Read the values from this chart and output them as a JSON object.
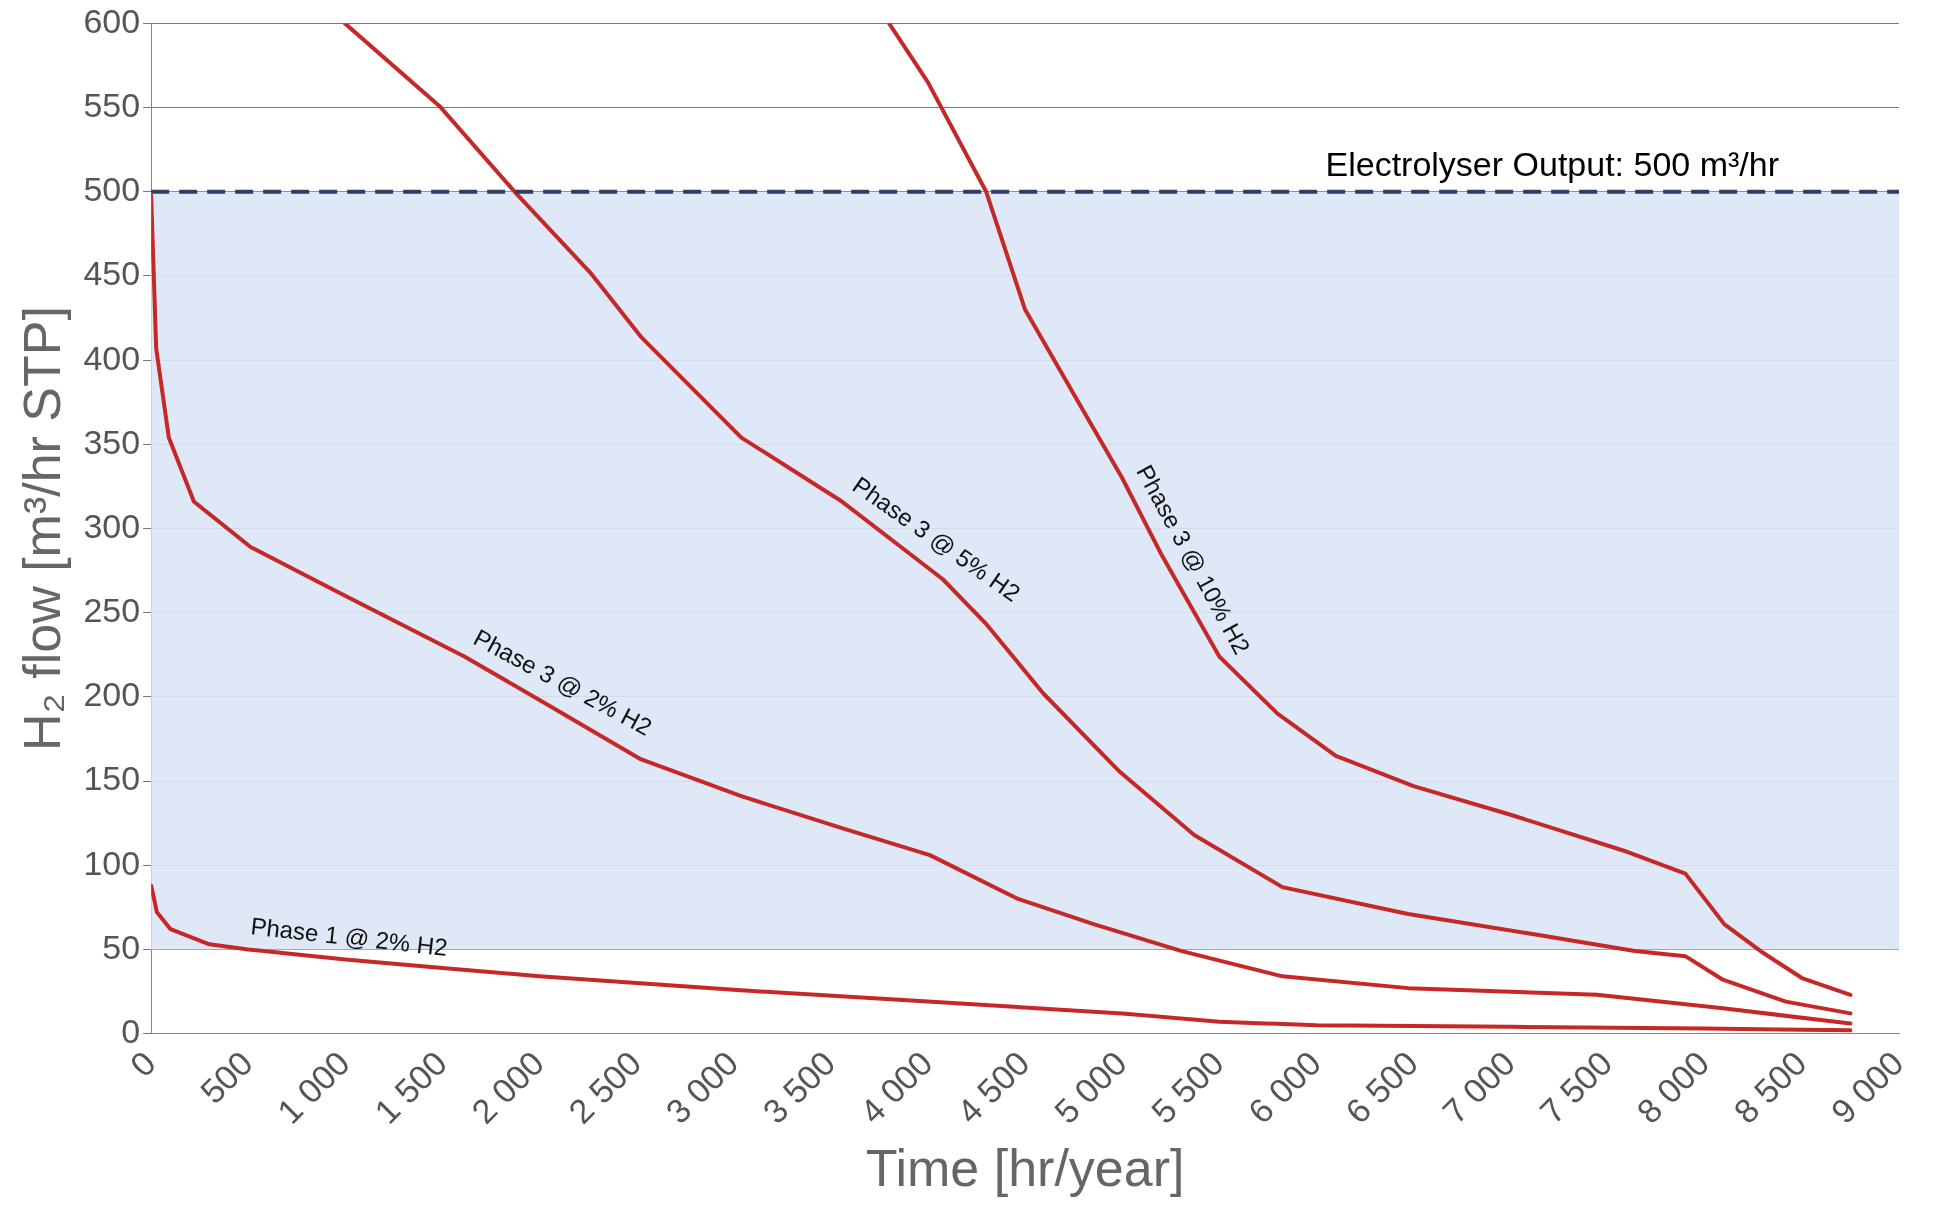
{
  "chart_data": {
    "type": "line",
    "xlabel": "Time [hr/year]",
    "ylabel": "H₂ flow [m³/hr STP]",
    "xlim": [
      0,
      9000
    ],
    "xticks": [
      0,
      500,
      {
        "value": 1000,
        "label": "1 000"
      },
      {
        "value": 1500,
        "label": "1 500"
      },
      {
        "value": 2000,
        "label": "2 000"
      },
      {
        "value": 2500,
        "label": "2 500"
      },
      {
        "value": 3000,
        "label": "3 000"
      },
      {
        "value": 3500,
        "label": "3 500"
      },
      {
        "value": 4000,
        "label": "4 000"
      },
      {
        "value": 4500,
        "label": "4 500"
      },
      {
        "value": 5000,
        "label": "5 000"
      },
      {
        "value": 5500,
        "label": "5 500"
      },
      {
        "value": 6000,
        "label": "6 000"
      },
      {
        "value": 6500,
        "label": "6 500"
      },
      {
        "value": 7000,
        "label": "7 000"
      },
      {
        "value": 7500,
        "label": "7 500"
      },
      {
        "value": 8000,
        "label": "8 000"
      },
      {
        "value": 8500,
        "label": "8 500"
      },
      {
        "value": 9000,
        "label": "9 000"
      }
    ],
    "ylim": [
      0,
      600
    ],
    "yticks": [
      0,
      50,
      100,
      150,
      200,
      250,
      300,
      350,
      400,
      450,
      500,
      550,
      600
    ],
    "grid": "y",
    "legend": false,
    "marker": "none",
    "line_style": "solid",
    "series": [
      {
        "name": "Phase 1 @ 2% H2",
        "color": "#c62828",
        "x": [
          0,
          30,
          100,
          300,
          500,
          1000,
          1500,
          2000,
          3000,
          4000,
          5000,
          5500,
          6000,
          7000,
          8000,
          8750
        ],
        "values": [
          88,
          72,
          62,
          53,
          50,
          44,
          39,
          34,
          26,
          19,
          12,
          7,
          5,
          4,
          3,
          2
        ]
      },
      {
        "name": "Phase 3 @ 2% H2",
        "color": "#c62828",
        "x": [
          0,
          26,
          91,
          220,
          512,
          966,
          1613,
          2002,
          2521,
          3039,
          3557,
          4010,
          4464,
          4853,
          5307,
          5825,
          6473,
          7445,
          8093,
          8750
        ],
        "values": [
          498,
          407,
          354,
          316,
          289,
          262,
          224,
          198,
          163,
          141,
          122,
          106,
          80,
          65,
          49,
          34,
          27,
          23,
          15,
          6
        ]
      },
      {
        "name": "Phase 3 @ 5% H2",
        "color": "#c62828",
        "x": [
          998,
          1484,
          1872,
          2261,
          2521,
          3039,
          3557,
          4075,
          4302,
          4594,
          4983,
          5371,
          5825,
          6473,
          7121,
          7640,
          7900,
          8093,
          8417,
          8750
        ],
        "values": [
          600,
          551,
          500,
          452,
          414,
          354,
          316,
          270,
          243,
          202,
          156,
          118,
          87,
          71,
          59,
          49,
          46,
          32,
          19,
          12
        ]
      },
      {
        "name": "Phase 3 @ 10% H2",
        "color": "#c62828",
        "x": [
          3800,
          4000,
          4300,
          4500,
          4800,
          5000,
          5200,
          5500,
          5800,
          6100,
          6500,
          7000,
          7600,
          7900,
          8000,
          8100,
          8300,
          8500,
          8750
        ],
        "values": [
          600,
          565,
          500,
          430,
          370,
          330,
          285,
          224,
          190,
          165,
          147,
          130,
          108,
          95,
          80,
          65,
          48,
          33,
          23
        ]
      }
    ],
    "ref_lines": [
      {
        "axis": "y",
        "value": 500,
        "label": "Electrolyser Output: 500 m³/hr",
        "color": "#2e3f6e",
        "line_style": "dashed"
      }
    ],
    "bands": [
      {
        "axis": "y",
        "from": 50,
        "to": 500,
        "color": "#dce6f5"
      }
    ]
  }
}
